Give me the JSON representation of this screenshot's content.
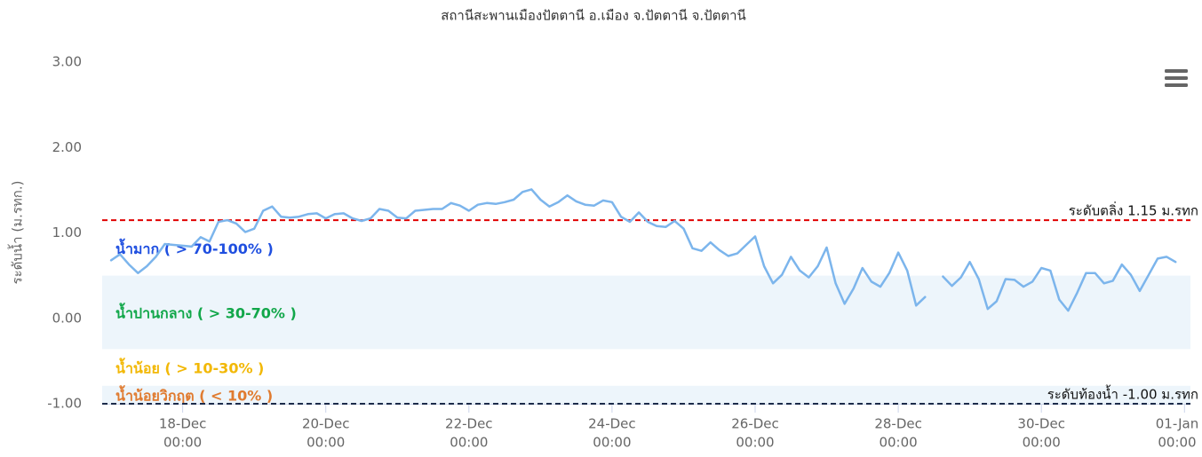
{
  "chart_data": {
    "type": "line",
    "title": "สถานีสะพานเมืองปัตตานี อ.เมือง จ.ปัตตานี จ.ปัตตานี",
    "y_label": "ระดับน้ำ (ม.รทก.)",
    "x": [
      "17-Dec 00:00",
      "17-Dec 03:00",
      "17-Dec 06:00",
      "17-Dec 09:00",
      "17-Dec 12:00",
      "17-Dec 15:00",
      "17-Dec 18:00",
      "17-Dec 21:00",
      "18-Dec 00:00",
      "18-Dec 03:00",
      "18-Dec 06:00",
      "18-Dec 09:00",
      "18-Dec 12:00",
      "18-Dec 15:00",
      "18-Dec 18:00",
      "18-Dec 21:00",
      "19-Dec 00:00",
      "19-Dec 03:00",
      "19-Dec 06:00",
      "19-Dec 09:00",
      "19-Dec 12:00",
      "19-Dec 15:00",
      "19-Dec 18:00",
      "19-Dec 21:00",
      "20-Dec 00:00",
      "20-Dec 03:00",
      "20-Dec 06:00",
      "20-Dec 09:00",
      "20-Dec 12:00",
      "20-Dec 15:00",
      "20-Dec 18:00",
      "20-Dec 21:00",
      "21-Dec 00:00",
      "21-Dec 03:00",
      "21-Dec 06:00",
      "21-Dec 09:00",
      "21-Dec 12:00",
      "21-Dec 15:00",
      "21-Dec 18:00",
      "21-Dec 21:00",
      "22-Dec 00:00",
      "22-Dec 03:00",
      "22-Dec 06:00",
      "22-Dec 09:00",
      "22-Dec 12:00",
      "22-Dec 15:00",
      "22-Dec 18:00",
      "22-Dec 21:00",
      "23-Dec 00:00",
      "23-Dec 03:00",
      "23-Dec 06:00",
      "23-Dec 09:00",
      "23-Dec 12:00",
      "23-Dec 15:00",
      "23-Dec 18:00",
      "23-Dec 21:00",
      "24-Dec 00:00",
      "24-Dec 03:00",
      "24-Dec 06:00",
      "24-Dec 09:00",
      "24-Dec 12:00",
      "24-Dec 15:00",
      "24-Dec 18:00",
      "24-Dec 21:00",
      "25-Dec 00:00",
      "25-Dec 03:00",
      "25-Dec 06:00",
      "25-Dec 09:00",
      "25-Dec 12:00",
      "25-Dec 15:00",
      "25-Dec 18:00",
      "25-Dec 21:00",
      "26-Dec 00:00",
      "26-Dec 03:00",
      "26-Dec 06:00",
      "26-Dec 09:00",
      "26-Dec 12:00",
      "26-Dec 15:00",
      "26-Dec 18:00",
      "26-Dec 21:00",
      "27-Dec 00:00",
      "27-Dec 03:00",
      "27-Dec 06:00",
      "27-Dec 09:00",
      "27-Dec 12:00",
      "27-Dec 15:00",
      "27-Dec 18:00",
      "27-Dec 21:00",
      "28-Dec 00:00",
      "28-Dec 03:00",
      "28-Dec 06:00",
      "28-Dec 09:00",
      "28-Dec 12:00",
      "28-Dec 15:00",
      "28-Dec 18:00",
      "28-Dec 21:00",
      "29-Dec 00:00",
      "29-Dec 03:00",
      "29-Dec 06:00",
      "29-Dec 09:00",
      "29-Dec 12:00",
      "29-Dec 15:00",
      "29-Dec 18:00",
      "29-Dec 21:00",
      "30-Dec 00:00",
      "30-Dec 03:00",
      "30-Dec 06:00",
      "30-Dec 09:00",
      "30-Dec 12:00",
      "30-Dec 15:00",
      "30-Dec 18:00",
      "30-Dec 21:00",
      "31-Dec 00:00",
      "31-Dec 03:00",
      "31-Dec 06:00",
      "31-Dec 09:00",
      "31-Dec 12:00",
      "31-Dec 15:00",
      "31-Dec 18:00",
      "31-Dec 21:00"
    ],
    "series": [
      {
        "color": "#7cb5ec",
        "values": [
          0.68,
          0.75,
          0.63,
          0.53,
          0.61,
          0.72,
          0.87,
          0.86,
          0.85,
          0.84,
          0.95,
          0.9,
          1.13,
          1.15,
          1.11,
          1.01,
          1.05,
          1.26,
          1.31,
          1.19,
          1.18,
          1.19,
          1.22,
          1.23,
          1.17,
          1.22,
          1.23,
          1.17,
          1.14,
          1.17,
          1.28,
          1.26,
          1.18,
          1.17,
          1.26,
          1.27,
          1.28,
          1.28,
          1.35,
          1.32,
          1.26,
          1.33,
          1.35,
          1.34,
          1.36,
          1.39,
          1.48,
          1.51,
          1.39,
          1.31,
          1.36,
          1.44,
          1.37,
          1.33,
          1.32,
          1.38,
          1.36,
          1.19,
          1.13,
          1.24,
          1.13,
          1.08,
          1.07,
          1.14,
          1.05,
          0.82,
          0.79,
          0.89,
          0.8,
          0.73,
          0.76,
          0.86,
          0.96,
          0.61,
          0.41,
          0.51,
          0.72,
          0.56,
          0.48,
          0.61,
          0.83,
          0.41,
          0.17,
          0.35,
          0.59,
          0.43,
          0.37,
          0.53,
          0.77,
          0.56,
          0.15,
          0.25,
          null,
          0.49,
          0.38,
          0.48,
          0.66,
          0.46,
          0.11,
          0.2,
          0.46,
          0.45,
          0.37,
          0.43,
          0.59,
          0.56,
          0.22,
          0.09,
          0.3,
          0.53,
          0.53,
          0.41,
          0.44,
          0.63,
          0.51,
          0.32,
          0.51,
          0.7,
          0.72,
          0.66
        ]
      }
    ],
    "xlim": [
      "16-Dec 21:00",
      "01-Jan 02:00"
    ],
    "xticks": [
      {
        "value": "18-Dec 00:00",
        "label": [
          "18-Dec",
          "00:00"
        ]
      },
      {
        "value": "20-Dec 00:00",
        "label": [
          "20-Dec",
          "00:00"
        ]
      },
      {
        "value": "22-Dec 00:00",
        "label": [
          "22-Dec",
          "00:00"
        ]
      },
      {
        "value": "24-Dec 00:00",
        "label": [
          "24-Dec",
          "00:00"
        ]
      },
      {
        "value": "26-Dec 00:00",
        "label": [
          "26-Dec",
          "00:00"
        ]
      },
      {
        "value": "28-Dec 00:00",
        "label": [
          "28-Dec",
          "00:00"
        ]
      },
      {
        "value": "30-Dec 00:00",
        "label": [
          "30-Dec",
          "00:00"
        ]
      },
      {
        "value": "01-Jan 00:00",
        "label": [
          "01-Jan",
          "00:00"
        ]
      }
    ],
    "ylim": [
      -1,
      3
    ],
    "yticks": [
      {
        "value": 3,
        "label": "3.00"
      },
      {
        "value": 2,
        "label": "2.00"
      },
      {
        "value": 1,
        "label": "1.00"
      },
      {
        "value": 0,
        "label": "0.00"
      },
      {
        "value": -1,
        "label": "-1.00"
      }
    ],
    "grid": false,
    "bands": [
      {
        "label": "น้ำมาก ( > 70-100% )",
        "color": "#1f4fe0",
        "from": 0.5,
        "to": 1.15
      },
      {
        "label": "น้ำปานกลาง ( > 30-70% )",
        "color": "#12a74a",
        "from": -0.36,
        "to": 0.5,
        "fill": "#edf5fb"
      },
      {
        "label": "น้ำน้อย ( > 10-30% )",
        "color": "#f2b807",
        "from": -0.79,
        "to": -0.36
      },
      {
        "label": "น้ำน้อยวิกฤต ( < 10% )",
        "color": "#e07b30",
        "from": -1,
        "to": -0.79,
        "fill": "#edf5fb"
      }
    ],
    "plot_lines": [
      {
        "value": 1.15,
        "label": "ระดับตลิ่ง 1.15 ม.รทก",
        "color": "#e00000"
      },
      {
        "value": -1,
        "label": "ระดับท้องน้ำ -1.00 ม.รทก",
        "color": "#1c2b4a"
      }
    ]
  }
}
